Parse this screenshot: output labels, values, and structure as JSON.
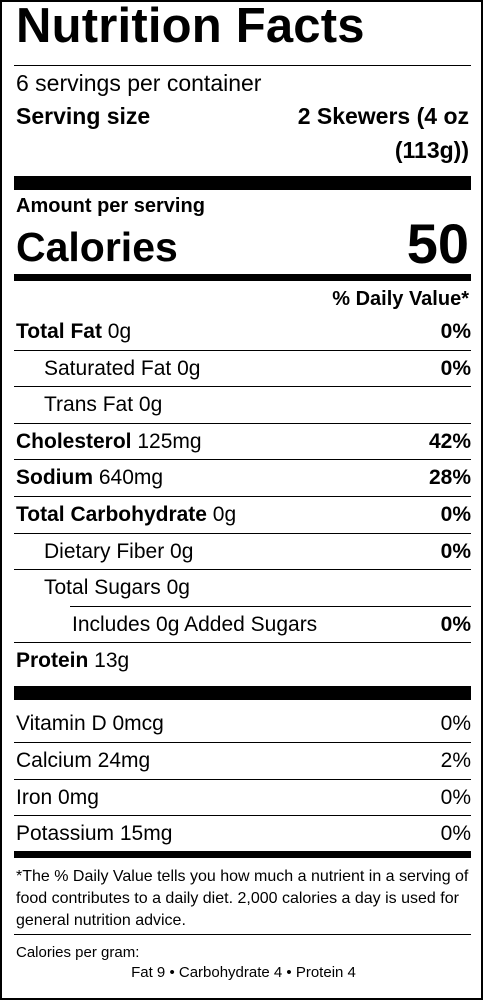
{
  "title": "Nutrition Facts",
  "servings_per_container": "6 servings per container",
  "serving_size": {
    "label": "Serving size",
    "value_line1": "2 Skewers (4 oz",
    "value_line2": "(113g))"
  },
  "amount_per_serving": "Amount per serving",
  "calories": {
    "label": "Calories",
    "value": "50"
  },
  "daily_value_header": "% Daily Value*",
  "nutrients": [
    {
      "name": "Total Fat",
      "amount": "0g",
      "dv": "0%"
    },
    {
      "name": "Saturated Fat",
      "amount": "0g",
      "dv": "0%"
    },
    {
      "name": "Trans Fat",
      "amount": "0g",
      "dv": ""
    },
    {
      "name": "Cholesterol",
      "amount": "125mg",
      "dv": "42%"
    },
    {
      "name": "Sodium",
      "amount": "640mg",
      "dv": "28%"
    },
    {
      "name": "Total Carbohydrate",
      "amount": "0g",
      "dv": "0%"
    },
    {
      "name": "Dietary Fiber",
      "amount": "0g",
      "dv": "0%"
    },
    {
      "name": "Total Sugars",
      "amount": "0g",
      "dv": ""
    },
    {
      "name": "Includes 0g Added Sugars",
      "amount": "",
      "dv": "0%"
    },
    {
      "name": "Protein",
      "amount": "13g",
      "dv": ""
    }
  ],
  "vitamins": [
    {
      "name": "Vitamin D",
      "amount": "0mcg",
      "dv": "0%"
    },
    {
      "name": "Calcium",
      "amount": "24mg",
      "dv": "2%"
    },
    {
      "name": "Iron",
      "amount": "0mg",
      "dv": "0%"
    },
    {
      "name": "Potassium",
      "amount": "15mg",
      "dv": "0%"
    }
  ],
  "footnote": "*The % Daily Value tells you how much a nutrient in a serving of food contributes to a daily diet. 2,000 calories a day is used for general nutrition advice.",
  "calories_per_gram": {
    "label": "Calories per gram:",
    "items": "Fat 9  •  Carbohydrate 4  •  Protein 4"
  }
}
